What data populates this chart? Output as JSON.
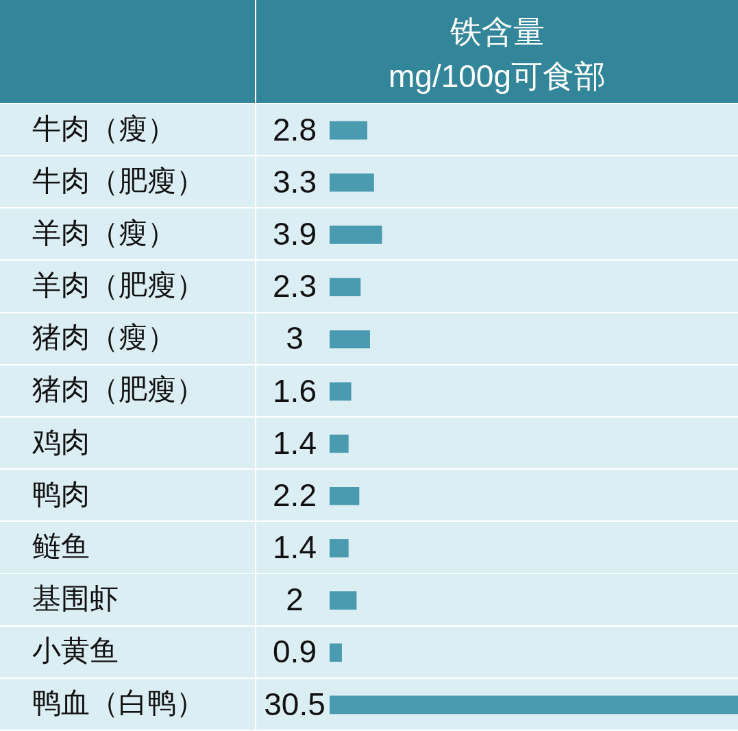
{
  "chart_data": {
    "type": "bar",
    "orientation": "horizontal",
    "title": "铁含量",
    "subtitle": "mg/100g可食部",
    "categories": [
      "牛肉（瘦）",
      "牛肉（肥瘦）",
      "羊肉（瘦）",
      "羊肉（肥瘦）",
      "猪肉（瘦）",
      "猪肉（肥瘦）",
      "鸡肉",
      "鸭肉",
      "鲢鱼",
      "基围虾",
      "小黄鱼",
      "鸭血（白鸭）"
    ],
    "values": [
      2.8,
      3.3,
      3.9,
      2.3,
      3,
      1.6,
      1.4,
      2.2,
      1.4,
      2,
      0.9,
      30.5
    ],
    "color": "#4a9ab0",
    "data_labels": true,
    "tick_labels": "y"
  }
}
